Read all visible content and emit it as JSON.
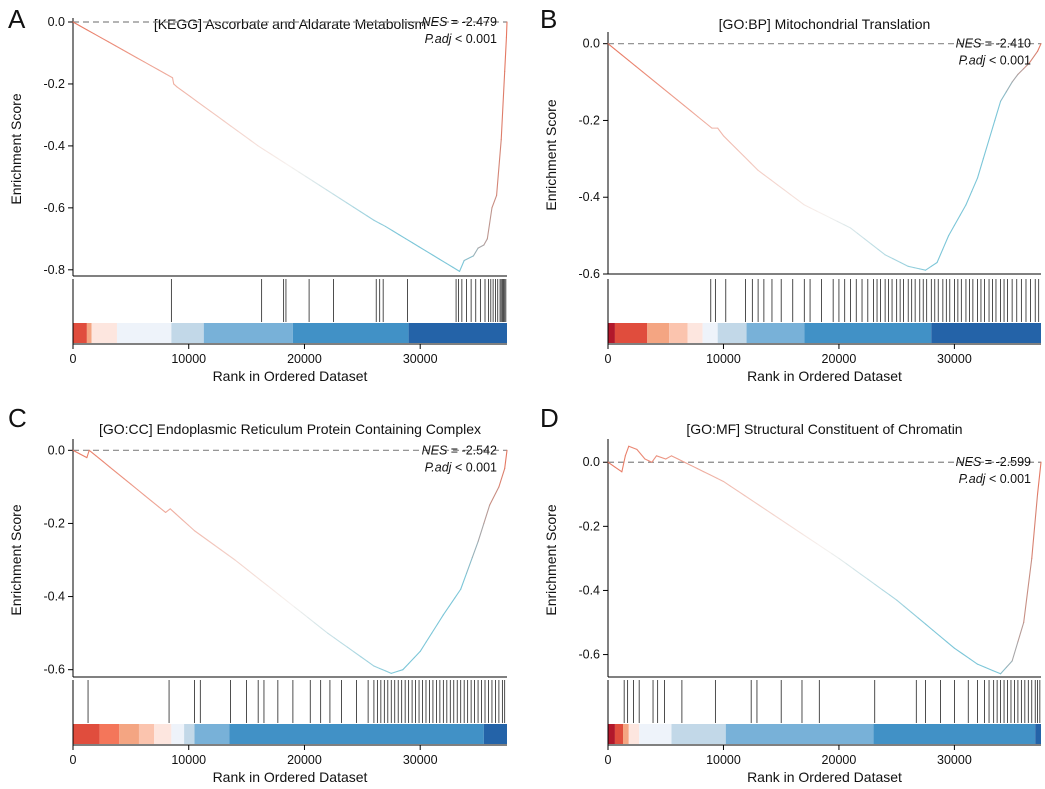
{
  "chart_data": [
    {
      "type": "line",
      "panel": "A",
      "title": "[KEGG] Ascorbate and Aldarate Metabolism",
      "ylabel": "Enrichment Score",
      "xlabel": "Rank in Ordered Dataset",
      "xlim": [
        0,
        37500
      ],
      "ylim": [
        -0.82,
        0.0
      ],
      "yticks": [
        0.0,
        -0.2,
        -0.4,
        -0.6,
        -0.8
      ],
      "ytick_labels": [
        "0.0",
        "-0.2",
        "-0.4",
        "-0.6",
        "-0.8"
      ],
      "xticks": [
        0,
        10000,
        20000,
        30000
      ],
      "xtick_labels": [
        "0",
        "10000",
        "20000",
        "30000"
      ],
      "nes_label": "NES",
      "nes_value": "= -2.479",
      "padj_label": "P.adj",
      "padj_value": "< 0.001",
      "curve": [
        [
          0,
          0
        ],
        [
          8600,
          -0.18
        ],
        [
          8700,
          -0.2
        ],
        [
          9000,
          -0.21
        ],
        [
          16000,
          -0.4
        ],
        [
          26000,
          -0.64
        ],
        [
          27000,
          -0.66
        ],
        [
          33400,
          -0.805
        ],
        [
          33800,
          -0.77
        ],
        [
          34600,
          -0.755
        ],
        [
          35000,
          -0.73
        ],
        [
          35500,
          -0.72
        ],
        [
          35800,
          -0.7
        ],
        [
          36200,
          -0.6
        ],
        [
          36600,
          -0.56
        ],
        [
          37000,
          -0.38
        ],
        [
          37300,
          -0.16
        ],
        [
          37450,
          -0.05
        ],
        [
          37500,
          0.0
        ]
      ],
      "hits": [
        8500,
        16300,
        18200,
        18400,
        20400,
        22500,
        26200,
        26500,
        26800,
        28900,
        33100,
        33300,
        33600,
        34000,
        34400,
        34800,
        35200,
        35600,
        35900,
        36100,
        36300,
        36500,
        36700,
        36900,
        37000,
        37100,
        37200,
        37300,
        37400
      ],
      "color_blocks": [
        [
          0,
          1200,
          "#e04d3d"
        ],
        [
          1200,
          1600,
          "#f4a582"
        ],
        [
          1600,
          3800,
          "#fde6df"
        ],
        [
          3800,
          8500,
          "#eef3fa"
        ],
        [
          8500,
          11300,
          "#c2d8e8"
        ],
        [
          11300,
          19000,
          "#78b1d8"
        ],
        [
          19000,
          29000,
          "#4191c6"
        ],
        [
          29000,
          37500,
          "#2463a8"
        ]
      ],
      "color_split": 18500
    },
    {
      "type": "line",
      "panel": "B",
      "title": "[GO:BP] Mitochondrial Translation",
      "ylabel": "Enrichment Score",
      "xlabel": "Rank in Ordered Dataset",
      "xlim": [
        0,
        37500
      ],
      "ylim": [
        -0.6,
        0.02
      ],
      "yticks": [
        0.0,
        -0.2,
        -0.4,
        -0.6
      ],
      "ytick_labels": [
        "0.0",
        "-0.2",
        "-0.4",
        "-0.6"
      ],
      "xticks": [
        0,
        10000,
        20000,
        30000
      ],
      "xtick_labels": [
        "0",
        "10000",
        "20000",
        "30000"
      ],
      "nes_label": "NES",
      "nes_value": "= -2.410",
      "padj_label": "P.adj",
      "padj_value": "< 0.001",
      "curve": [
        [
          0,
          0
        ],
        [
          9000,
          -0.22
        ],
        [
          9500,
          -0.22
        ],
        [
          10000,
          -0.24
        ],
        [
          13000,
          -0.33
        ],
        [
          17000,
          -0.42
        ],
        [
          21000,
          -0.48
        ],
        [
          24000,
          -0.55
        ],
        [
          26000,
          -0.58
        ],
        [
          27500,
          -0.59
        ],
        [
          28500,
          -0.57
        ],
        [
          29500,
          -0.5
        ],
        [
          31000,
          -0.42
        ],
        [
          32000,
          -0.35
        ],
        [
          33000,
          -0.25
        ],
        [
          34000,
          -0.15
        ],
        [
          35000,
          -0.1
        ],
        [
          35500,
          -0.08
        ],
        [
          36500,
          -0.05
        ],
        [
          37200,
          -0.02
        ],
        [
          37500,
          0.0
        ]
      ],
      "hits": [
        8900,
        9300,
        10200,
        11900,
        12500,
        13000,
        13500,
        14200,
        15000,
        16000,
        17000,
        17500,
        18500,
        19500,
        20000,
        20500,
        21000,
        21500,
        22000,
        22500,
        23000,
        23300,
        23600,
        24000,
        24300,
        24600,
        25000,
        25300,
        25600,
        26000,
        26300,
        26600,
        27000,
        27300,
        27600,
        28000,
        28300,
        28600,
        29000,
        29300,
        29600,
        30000,
        30300,
        30600,
        31000,
        31300,
        31600,
        32000,
        32300,
        32600,
        33000,
        33300,
        33600,
        34000,
        34300,
        34600,
        35000,
        35400,
        35800,
        36200,
        36600,
        37000,
        37300
      ],
      "color_blocks": [
        [
          0,
          600,
          "#b2182b"
        ],
        [
          600,
          3400,
          "#e04d3d"
        ],
        [
          3400,
          5300,
          "#f4a582"
        ],
        [
          5300,
          6900,
          "#fbc4ae"
        ],
        [
          6900,
          8200,
          "#fde6df"
        ],
        [
          8200,
          9500,
          "#eef3fa"
        ],
        [
          9500,
          12000,
          "#c2d8e8"
        ],
        [
          12000,
          17000,
          "#78b1d8"
        ],
        [
          17000,
          28000,
          "#4191c6"
        ],
        [
          28000,
          37500,
          "#2463a8"
        ]
      ],
      "color_split": 17500
    },
    {
      "type": "line",
      "panel": "C",
      "title": "[GO:CC] Endoplasmic Reticulum Protein Containing Complex",
      "ylabel": "Enrichment Score",
      "xlabel": "Rank in Ordered Dataset",
      "xlim": [
        0,
        37500
      ],
      "ylim": [
        -0.62,
        0.02
      ],
      "yticks": [
        0.0,
        -0.2,
        -0.4,
        -0.6
      ],
      "ytick_labels": [
        "0.0",
        "-0.2",
        "-0.4",
        "-0.6"
      ],
      "xticks": [
        0,
        10000,
        20000,
        30000
      ],
      "xtick_labels": [
        "0",
        "10000",
        "20000",
        "30000"
      ],
      "nes_label": "NES",
      "nes_value": "= -2.542",
      "padj_label": "P.adj",
      "padj_value": "< 0.001",
      "curve": [
        [
          0,
          0
        ],
        [
          1200,
          -0.02
        ],
        [
          1400,
          0.0
        ],
        [
          8000,
          -0.17
        ],
        [
          8400,
          -0.16
        ],
        [
          10500,
          -0.22
        ],
        [
          14000,
          -0.3
        ],
        [
          18000,
          -0.4
        ],
        [
          22000,
          -0.5
        ],
        [
          26000,
          -0.59
        ],
        [
          27500,
          -0.61
        ],
        [
          28500,
          -0.6
        ],
        [
          30000,
          -0.55
        ],
        [
          31000,
          -0.5
        ],
        [
          32000,
          -0.45
        ],
        [
          33500,
          -0.38
        ],
        [
          35000,
          -0.25
        ],
        [
          36000,
          -0.15
        ],
        [
          36800,
          -0.1
        ],
        [
          37300,
          -0.05
        ],
        [
          37500,
          0.0
        ]
      ],
      "hits": [
        1300,
        8300,
        10500,
        11000,
        13600,
        15000,
        16000,
        16500,
        17700,
        19000,
        20500,
        21400,
        22200,
        23200,
        24500,
        25500,
        26000,
        26300,
        26600,
        26900,
        27200,
        27500,
        27800,
        28100,
        28400,
        28700,
        29000,
        29300,
        29600,
        29900,
        30200,
        30500,
        30800,
        31100,
        31400,
        31700,
        32000,
        32300,
        32600,
        32900,
        33200,
        33500,
        33800,
        34100,
        34400,
        34700,
        35000,
        35300,
        35600,
        35900,
        36200,
        36500,
        36800,
        37100,
        37300
      ],
      "color_blocks": [
        [
          0,
          2300,
          "#e04d3d"
        ],
        [
          2300,
          4000,
          "#f4765a"
        ],
        [
          4000,
          5700,
          "#f4a582"
        ],
        [
          5700,
          7000,
          "#fbc4ae"
        ],
        [
          7000,
          8500,
          "#fde6df"
        ],
        [
          8500,
          9600,
          "#eef3fa"
        ],
        [
          9600,
          10500,
          "#c2d8e8"
        ],
        [
          10500,
          13500,
          "#78b1d8"
        ],
        [
          13500,
          35500,
          "#4191c6"
        ],
        [
          35500,
          37500,
          "#2463a8"
        ]
      ],
      "color_split": 18500
    },
    {
      "type": "line",
      "panel": "D",
      "title": "[GO:MF] Structural Constituent of Chromatin",
      "ylabel": "Enrichment Score",
      "xlabel": "Rank in Ordered Dataset",
      "xlim": [
        0,
        37500
      ],
      "ylim": [
        -0.67,
        0.06
      ],
      "yticks": [
        0.0,
        -0.2,
        -0.4,
        -0.6
      ],
      "ytick_labels": [
        "0.0",
        "-0.2",
        "-0.4",
        "-0.6"
      ],
      "xticks": [
        0,
        10000,
        20000,
        30000
      ],
      "xtick_labels": [
        "0",
        "10000",
        "20000",
        "30000"
      ],
      "nes_label": "NES",
      "nes_value": "= -2.599",
      "padj_label": "P.adj",
      "padj_value": "< 0.001",
      "curve": [
        [
          0,
          0
        ],
        [
          1200,
          -0.03
        ],
        [
          1500,
          0.02
        ],
        [
          1800,
          0.05
        ],
        [
          2500,
          0.04
        ],
        [
          3200,
          0.01
        ],
        [
          3800,
          0.0
        ],
        [
          4200,
          0.02
        ],
        [
          5000,
          0.01
        ],
        [
          5500,
          0.02
        ],
        [
          10000,
          -0.06
        ],
        [
          15000,
          -0.18
        ],
        [
          20000,
          -0.3
        ],
        [
          25000,
          -0.43
        ],
        [
          30000,
          -0.58
        ],
        [
          32000,
          -0.63
        ],
        [
          34000,
          -0.66
        ],
        [
          35000,
          -0.62
        ],
        [
          36000,
          -0.5
        ],
        [
          36700,
          -0.3
        ],
        [
          37200,
          -0.1
        ],
        [
          37500,
          0.0
        ]
      ],
      "hits": [
        1400,
        1700,
        2200,
        2700,
        3900,
        4300,
        4900,
        6400,
        9300,
        12400,
        12900,
        15000,
        16800,
        18300,
        23100,
        26700,
        27500,
        28800,
        30000,
        31200,
        32000,
        32600,
        33000,
        33400,
        33700,
        34000,
        34300,
        34600,
        34900,
        35200,
        35500,
        35800,
        36100,
        36400,
        36700,
        37000,
        37200,
        37400
      ],
      "color_blocks": [
        [
          0,
          600,
          "#b2182b"
        ],
        [
          600,
          1300,
          "#e04d3d"
        ],
        [
          1300,
          1800,
          "#f4a582"
        ],
        [
          1800,
          2700,
          "#fde6df"
        ],
        [
          2700,
          5500,
          "#eef3fa"
        ],
        [
          5500,
          10200,
          "#c2d8e8"
        ],
        [
          10200,
          23000,
          "#78b1d8"
        ],
        [
          23000,
          37000,
          "#4191c6"
        ],
        [
          37000,
          37500,
          "#2463a8"
        ]
      ],
      "color_split": 17500
    }
  ]
}
